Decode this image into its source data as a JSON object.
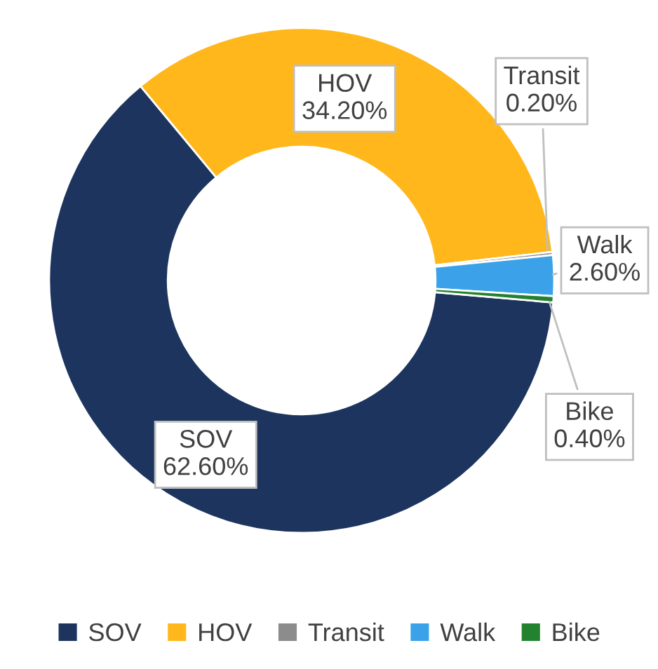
{
  "chart_data": {
    "type": "donut",
    "categories": [
      "SOV",
      "HOV",
      "Transit",
      "Walk",
      "Bike"
    ],
    "values": [
      62.6,
      34.2,
      0.2,
      2.6,
      0.4
    ],
    "value_labels": [
      "62.60%",
      "34.20%",
      "0.20%",
      "2.60%",
      "0.40%"
    ],
    "colors": [
      "#1d355e",
      "#ffb71b",
      "#8c8c8c",
      "#3ba2ea",
      "#23822f"
    ],
    "legend": "bottom"
  }
}
